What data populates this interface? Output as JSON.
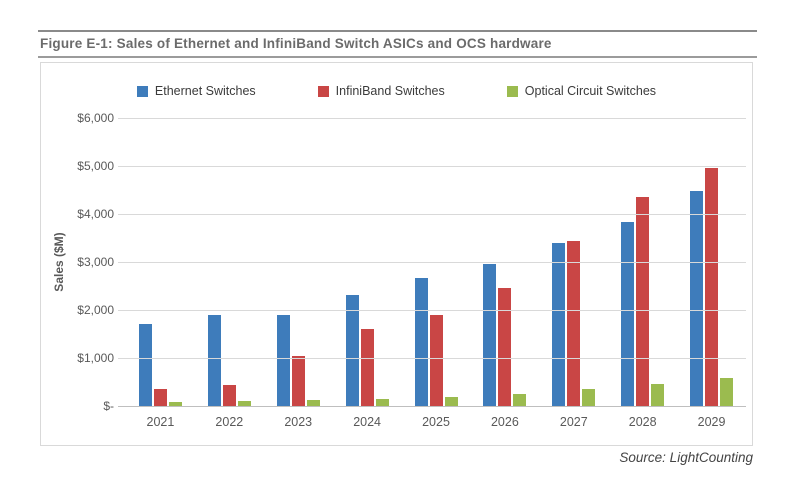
{
  "figure": {
    "title": "Figure E-1: Sales of Ethernet and InfiniBand Switch ASICs and OCS hardware",
    "source": "Source: LightCounting"
  },
  "chart_data": {
    "type": "bar",
    "title": "Sales of Ethernet and InfiniBand Switch ASICs and OCS hardware",
    "categories": [
      "2021",
      "2022",
      "2023",
      "2024",
      "2025",
      "2026",
      "2027",
      "2028",
      "2029"
    ],
    "series": [
      {
        "name": "Ethernet Switches",
        "color": "#3e7cbb",
        "values": [
          1700,
          1900,
          1900,
          2320,
          2660,
          2950,
          3400,
          3830,
          4470
        ]
      },
      {
        "name": "InfiniBand Switches",
        "color": "#c94645",
        "values": [
          350,
          430,
          1050,
          1600,
          1900,
          2450,
          3440,
          4350,
          4950
        ]
      },
      {
        "name": "Optical Circuit Switches",
        "color": "#9bbb4f",
        "values": [
          80,
          95,
          115,
          150,
          195,
          245,
          355,
          465,
          585
        ]
      }
    ],
    "xlabel": "",
    "ylabel": "Sales ($M)",
    "ylim": [
      0,
      6000
    ],
    "ytick_step": 1000,
    "yticks": [
      {
        "value": 0,
        "label": "$-"
      },
      {
        "value": 1000,
        "label": "$1,000"
      },
      {
        "value": 2000,
        "label": "$2,000"
      },
      {
        "value": 3000,
        "label": "$3,000"
      },
      {
        "value": 4000,
        "label": "$4,000"
      },
      {
        "value": 5000,
        "label": "$5,000"
      },
      {
        "value": 6000,
        "label": "$6,000"
      }
    ],
    "grid": true,
    "legend_position": "top"
  }
}
